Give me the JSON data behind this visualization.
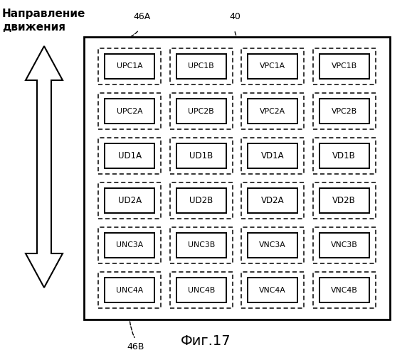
{
  "title": "Фиг.17",
  "direction_label": "Направление\nдвижения",
  "label_46A": "46A",
  "label_46B": "46B",
  "label_40": "40",
  "fig_background": "#ffffff",
  "cells": [
    [
      "UPC1A",
      "UPC1B",
      "VPC1A",
      "VPC1B"
    ],
    [
      "UPC2A",
      "UPC2B",
      "VPC2A",
      "VPC2B"
    ],
    [
      "UD1A",
      "UD1B",
      "VD1A",
      "VD1B"
    ],
    [
      "UD2A",
      "UD2B",
      "VD2A",
      "VD2B"
    ],
    [
      "UNC3A",
      "UNC3B",
      "VNC3A",
      "VNC3B"
    ],
    [
      "UNC4A",
      "UNC4B",
      "VNC4A",
      "VNC4B"
    ]
  ],
  "num_rows": 6,
  "num_cols": 4
}
